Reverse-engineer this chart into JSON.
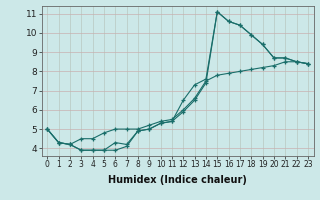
{
  "xlabel": "Humidex (Indice chaleur)",
  "bg_color": "#cce8e8",
  "grid_major_color": "#c8b8b8",
  "grid_minor_color": "#dde8e8",
  "line_color": "#1a6e6a",
  "xlim": [
    -0.5,
    23.5
  ],
  "ylim": [
    3.6,
    11.4
  ],
  "xticks": [
    0,
    1,
    2,
    3,
    4,
    5,
    6,
    7,
    8,
    9,
    10,
    11,
    12,
    13,
    14,
    15,
    16,
    17,
    18,
    19,
    20,
    21,
    22,
    23
  ],
  "yticks": [
    4,
    5,
    6,
    7,
    8,
    9,
    10,
    11
  ],
  "line1_x": [
    0,
    1,
    2,
    3,
    4,
    5,
    6,
    7,
    8,
    9,
    10,
    11,
    12,
    13,
    14,
    15,
    16,
    17,
    18,
    19,
    20,
    21,
    22,
    23
  ],
  "line1_y": [
    5.0,
    4.3,
    4.2,
    3.9,
    3.9,
    3.9,
    3.9,
    4.1,
    4.9,
    5.0,
    5.3,
    5.4,
    5.9,
    6.5,
    7.4,
    11.1,
    10.6,
    10.4,
    9.9,
    9.4,
    8.7,
    8.7,
    8.5,
    8.4
  ],
  "line2_x": [
    0,
    1,
    2,
    3,
    4,
    5,
    6,
    7,
    8,
    9,
    10,
    11,
    12,
    13,
    14,
    15,
    16,
    17,
    18,
    19,
    20,
    21,
    22,
    23
  ],
  "line2_y": [
    5.0,
    4.3,
    4.2,
    3.9,
    3.9,
    3.9,
    4.3,
    4.2,
    4.9,
    5.0,
    5.3,
    5.4,
    6.5,
    7.3,
    7.6,
    11.1,
    10.6,
    10.4,
    9.9,
    9.4,
    8.7,
    8.7,
    8.5,
    8.4
  ],
  "line3_x": [
    0,
    1,
    2,
    3,
    4,
    5,
    6,
    7,
    8,
    9,
    10,
    11,
    12,
    13,
    14,
    15,
    16,
    17,
    18,
    19,
    20,
    21,
    22,
    23
  ],
  "line3_y": [
    5.0,
    4.3,
    4.2,
    4.5,
    4.5,
    4.8,
    5.0,
    5.0,
    5.0,
    5.2,
    5.4,
    5.5,
    6.0,
    6.6,
    7.5,
    7.8,
    7.9,
    8.0,
    8.1,
    8.2,
    8.3,
    8.5,
    8.5,
    8.4
  ],
  "xlabel_fontsize": 7,
  "tick_fontsize": 5.5,
  "ytick_fontsize": 6.5
}
